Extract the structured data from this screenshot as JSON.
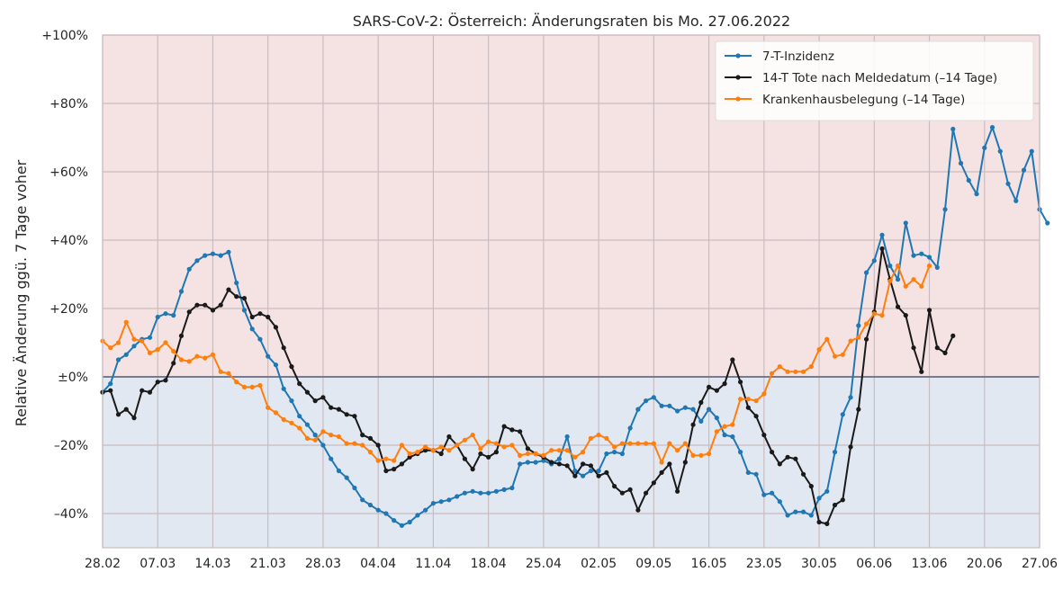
{
  "chart_data": {
    "type": "line",
    "title": "SARS-CoV-2: Österreich: Änderungsraten bis Mo. 27.06.2022",
    "xlabel": "",
    "ylabel": "Relative Änderung ggü. 7 Tage voher",
    "x_start": "28.02.2022",
    "x_end": "27.06.2022",
    "x_ticks": [
      "28.02",
      "07.03",
      "14.03",
      "21.03",
      "28.03",
      "04.04",
      "11.04",
      "18.04",
      "25.04",
      "02.05",
      "09.05",
      "16.05",
      "23.05",
      "30.05",
      "06.06",
      "13.06",
      "20.06",
      "27.06"
    ],
    "ylim": [
      -50,
      100
    ],
    "y_ticks": [
      -40,
      -20,
      0,
      20,
      40,
      60,
      80,
      100
    ],
    "y_tick_labels": [
      "–40%",
      "–20%",
      "±0%",
      "+20%",
      "+40%",
      "+60%",
      "+80%",
      "+100%"
    ],
    "grid": true,
    "legend_position": "top-right",
    "background_colors": {
      "positive": "#f5e3e3",
      "negative": "#e2e8f1",
      "zero_line": "#7a7a8c",
      "grid": "#c9bcc0"
    },
    "series": [
      {
        "name": "7-T-Inzidenz",
        "color": "#1f77b4",
        "start_date": "28.02.2022",
        "values": [
          -4.5,
          -2,
          5,
          6.5,
          9,
          11,
          11.5,
          17.5,
          18.5,
          18,
          25,
          31.5,
          34,
          35.5,
          36,
          35.5,
          36.5,
          27.5,
          19.5,
          14,
          11,
          6,
          3.5,
          -3.5,
          -7,
          -11.5,
          -14,
          -17,
          -20,
          -24,
          -27.5,
          -29.5,
          -32.5,
          -36,
          -37.5,
          -39,
          -40,
          -42,
          -43.5,
          -42.5,
          -40.5,
          -39,
          -37,
          -36.5,
          -36,
          -35,
          -34,
          -33.5,
          -34,
          -34,
          -33.5,
          -33,
          -32.5,
          -25.5,
          -25,
          -25,
          -24.5,
          -25.5,
          -24,
          -17.5,
          -27.5,
          -29,
          -27.5,
          -27.5,
          -22.5,
          -22,
          -22.5,
          -15,
          -9.5,
          -7,
          -6,
          -8.5,
          -8.5,
          -10,
          -9,
          -9.5,
          -13,
          -9.5,
          -12,
          -17,
          -17.5,
          -22,
          -28,
          -28.5,
          -34.5,
          -34,
          -36.5,
          -40.5,
          -39.5,
          -39.5,
          -40.5,
          -35.5,
          -33.5,
          -22,
          -11,
          -6,
          15,
          30.5,
          34,
          41.5,
          32.5,
          28.5,
          45,
          35.5,
          36,
          35,
          32,
          49,
          72.5,
          62.5,
          57.5,
          53.5,
          67,
          73,
          66,
          56.5,
          51.5,
          60.5,
          66,
          49,
          45
        ]
      },
      {
        "name": "14-T Tote nach Meldedatum (–14 Tage)",
        "color": "#1a1a1a",
        "start_date": "28.02.2022",
        "values": [
          -4.5,
          -4,
          -11,
          -9.5,
          -12,
          -4,
          -4.5,
          -1.5,
          -1,
          4,
          12,
          19,
          21,
          21,
          19.5,
          21,
          25.5,
          23.5,
          23,
          17.5,
          18.5,
          17.5,
          14.5,
          8.5,
          3,
          -2,
          -4.5,
          -7,
          -6,
          -9,
          -9.5,
          -11,
          -11.5,
          -17,
          -18,
          -20,
          -27.5,
          -27,
          -25.5,
          -23.5,
          -22.5,
          -21.5,
          -21.5,
          -22.5,
          -17.5,
          -20,
          -24,
          -27,
          -22.5,
          -23.5,
          -22,
          -14.5,
          -15.5,
          -16,
          -21,
          -22.5,
          -23.5,
          -25,
          -25.5,
          -26,
          -29,
          -25.5,
          -26,
          -29,
          -28,
          -32,
          -34,
          -33,
          -39,
          -34,
          -31,
          -28,
          -25.5,
          -33.5,
          -25,
          -14,
          -7.5,
          -3,
          -4,
          -2,
          5,
          -1.5,
          -9,
          -11.5,
          -17,
          -22,
          -25.5,
          -23.5,
          -24,
          -28.5,
          -32,
          -42.5,
          -43,
          -37.5,
          -36,
          -20.5,
          -9.5,
          11,
          19,
          37.5,
          28.5,
          20.5,
          18,
          8.5,
          1.5,
          19.5,
          8.5,
          7,
          12
        ]
      },
      {
        "name": "Krankenhausbelegung (–14 Tage)",
        "color": "#ff7f0e",
        "start_date": "28.02.2022",
        "values": [
          10.5,
          8.5,
          10,
          16,
          11,
          10.5,
          7,
          8,
          10,
          7.5,
          5,
          4.5,
          6,
          5.5,
          6.5,
          1.5,
          1,
          -1.5,
          -3,
          -3,
          -2.5,
          -9,
          -10.5,
          -12.5,
          -13.5,
          -15,
          -18,
          -18.5,
          -16,
          -17,
          -17.5,
          -19.5,
          -19.5,
          -20,
          -22,
          -24.5,
          -24,
          -24.5,
          -20,
          -22.5,
          -22,
          -20.5,
          -21.5,
          -20.5,
          -21.5,
          -20,
          -18.5,
          -17,
          -21,
          -19,
          -19.5,
          -20.5,
          -20,
          -23,
          -22.5,
          -22.5,
          -23,
          -21.5,
          -21.5,
          -21.5,
          -23.5,
          -22,
          -18,
          -17,
          -18,
          -20.5,
          -19.5,
          -19.5,
          -19.5,
          -19.5,
          -19.5,
          -25,
          -19.5,
          -21.5,
          -19.5,
          -23,
          -23,
          -22.5,
          -16,
          -14.5,
          -14,
          -6.5,
          -6.5,
          -7,
          -5,
          1,
          3,
          1.5,
          1.5,
          1.5,
          3,
          8,
          11,
          6,
          6.5,
          10.5,
          11.5,
          15.5,
          18.5,
          18,
          28,
          32.5,
          26.5,
          28.5,
          26.5,
          32.5
        ]
      }
    ]
  }
}
